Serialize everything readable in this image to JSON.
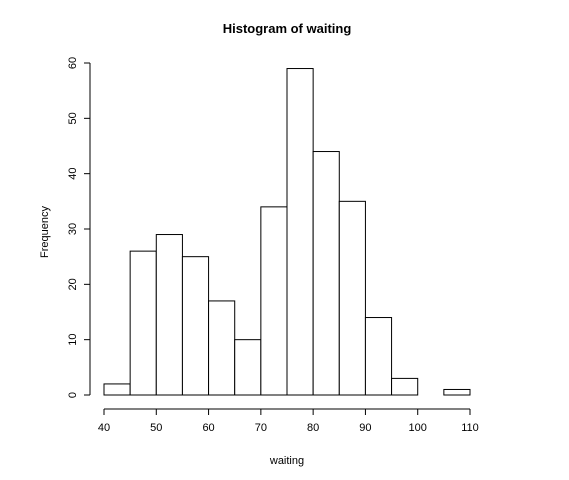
{
  "chart_data": {
    "type": "bar",
    "title": "Histogram of waiting",
    "xlabel": "waiting",
    "ylabel": "Frequency",
    "bins": [
      {
        "start": 40,
        "end": 45,
        "count": 2
      },
      {
        "start": 45,
        "end": 50,
        "count": 26
      },
      {
        "start": 50,
        "end": 55,
        "count": 29
      },
      {
        "start": 55,
        "end": 60,
        "count": 25
      },
      {
        "start": 60,
        "end": 65,
        "count": 17
      },
      {
        "start": 65,
        "end": 70,
        "count": 10
      },
      {
        "start": 70,
        "end": 75,
        "count": 34
      },
      {
        "start": 75,
        "end": 80,
        "count": 59
      },
      {
        "start": 80,
        "end": 85,
        "count": 44
      },
      {
        "start": 85,
        "end": 90,
        "count": 35
      },
      {
        "start": 90,
        "end": 95,
        "count": 14
      },
      {
        "start": 95,
        "end": 100,
        "count": 3
      },
      {
        "start": 100,
        "end": 105,
        "count": 0
      },
      {
        "start": 105,
        "end": 110,
        "count": 1
      }
    ],
    "xlim": [
      40,
      110
    ],
    "ylim": [
      0,
      60
    ],
    "x_ticks": [
      "40",
      "50",
      "60",
      "70",
      "80",
      "90",
      "100",
      "110"
    ],
    "y_ticks": [
      "0",
      "10",
      "20",
      "30",
      "40",
      "50",
      "60"
    ],
    "grid": false,
    "legend": "none"
  }
}
